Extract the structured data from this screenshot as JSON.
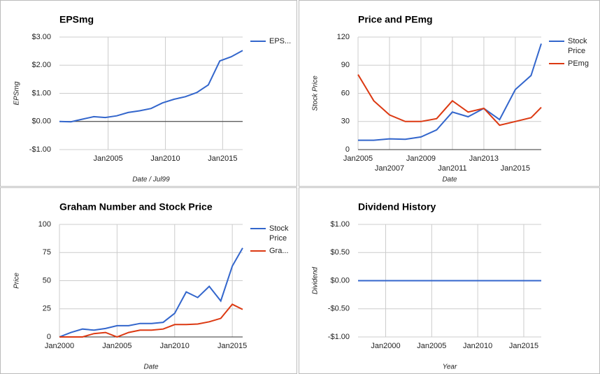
{
  "chart_data": [
    {
      "type": "line",
      "title": "EPSmg",
      "y_label": "EPSmg",
      "x_label": "Date / Jul99",
      "x": [
        2000.75,
        2001.75,
        2002.75,
        2003.75,
        2004.75,
        2005.75,
        2006.75,
        2007.75,
        2008.75,
        2009.75,
        2010.75,
        2011.75,
        2012.75,
        2013.75,
        2014.75,
        2015.75,
        2016.75
      ],
      "series": [
        {
          "name": "EPS...",
          "color": "#3366cc",
          "values": [
            0,
            -0.01,
            0.08,
            0.17,
            0.14,
            0.2,
            0.32,
            0.38,
            0.46,
            0.66,
            0.79,
            0.88,
            1.03,
            1.3,
            2.15,
            2.3,
            2.52
          ]
        }
      ],
      "xlim": [
        2000.75,
        2016.75
      ],
      "xticks": [
        {
          "value": 2005,
          "label": "Jan2005"
        },
        {
          "value": 2010,
          "label": "Jan2010"
        },
        {
          "value": 2015,
          "label": "Jan2015"
        }
      ],
      "ylim": [
        -1,
        3
      ],
      "yticks": [
        {
          "value": -1,
          "label": "-$1.00"
        },
        {
          "value": 0,
          "label": "$0.00"
        },
        {
          "value": 1,
          "label": "$1.00"
        },
        {
          "value": 2,
          "label": "$2.00"
        },
        {
          "value": 3,
          "label": "$3.00"
        }
      ],
      "grid": true,
      "zero_line": true
    },
    {
      "type": "line",
      "title": "Price and PEmg",
      "y_label": "Stock Price",
      "x_label": "Date",
      "x": [
        2005,
        2006,
        2007,
        2008,
        2009,
        2010,
        2011,
        2012,
        2013,
        2014,
        2015,
        2016,
        2016.65
      ],
      "series": [
        {
          "name": "Stock Price",
          "color": "#3366cc",
          "values": [
            10,
            10,
            11.5,
            11,
            13.5,
            21,
            40,
            35,
            44,
            32,
            64,
            79,
            113
          ]
        },
        {
          "name": "PEmg",
          "color": "#dc3912",
          "values": [
            80,
            52,
            37,
            30,
            30,
            33,
            52,
            40,
            44,
            26,
            30,
            34,
            45
          ]
        }
      ],
      "xlim": [
        2005,
        2016.65
      ],
      "xticks": [
        {
          "value": 2005,
          "label": "Jan2005"
        },
        {
          "value": 2007,
          "label": "Jan2007"
        },
        {
          "value": 2009,
          "label": "Jan2009"
        },
        {
          "value": 2011,
          "label": "Jan2011"
        },
        {
          "value": 2013,
          "label": "Jan2013"
        },
        {
          "value": 2015,
          "label": "Jan2015"
        }
      ],
      "ylim": [
        0,
        120
      ],
      "yticks": [
        0,
        30,
        60,
        90,
        120
      ],
      "grid": true,
      "zero_line": true
    },
    {
      "type": "line",
      "title": "Graham Number and Stock Price",
      "y_label": "Price",
      "x_label": "Date",
      "x": [
        2000,
        2001,
        2002,
        2003,
        2004,
        2005,
        2006,
        2007,
        2008,
        2009,
        2010,
        2011,
        2012,
        2013,
        2014,
        2015,
        2015.9
      ],
      "series": [
        {
          "name": "Stock Price",
          "color": "#3366cc",
          "values": [
            0,
            4,
            7,
            6,
            7.5,
            10,
            10,
            12,
            12,
            13,
            21,
            40,
            35,
            45,
            32,
            63,
            79
          ]
        },
        {
          "name": "Gra...",
          "color": "#dc3912",
          "values": [
            0,
            0,
            0,
            3,
            4,
            0,
            4,
            6,
            6,
            7,
            11,
            11,
            11.5,
            13.5,
            16.5,
            29,
            24.5
          ]
        }
      ],
      "xlim": [
        2000,
        2015.9
      ],
      "xticks": [
        {
          "value": 2000,
          "label": "Jan2000"
        },
        {
          "value": 2005,
          "label": "Jan2005"
        },
        {
          "value": 2010,
          "label": "Jan2010"
        },
        {
          "value": 2015,
          "label": "Jan2015"
        }
      ],
      "ylim": [
        0,
        100
      ],
      "yticks": [
        0,
        25,
        50,
        75,
        100
      ],
      "grid": true,
      "zero_line": true
    },
    {
      "type": "line",
      "title": "Dividend History",
      "y_label": "Dividend",
      "x_label": "Year",
      "x": [
        1997,
        2016.9
      ],
      "series": [
        {
          "color": "#3366cc",
          "values": [
            0,
            0
          ]
        }
      ],
      "xlim": [
        1997,
        2016.9
      ],
      "xticks": [
        {
          "value": 2000,
          "label": "Jan2000"
        },
        {
          "value": 2005,
          "label": "Jan2005"
        },
        {
          "value": 2010,
          "label": "Jan2010"
        },
        {
          "value": 2015,
          "label": "Jan2015"
        }
      ],
      "ylim": [
        -1,
        1
      ],
      "yticks": [
        {
          "value": -1,
          "label": "-$1.00"
        },
        {
          "value": -0.5,
          "label": "-$0.50"
        },
        {
          "value": 0,
          "label": "$0.00"
        },
        {
          "value": 0.5,
          "label": "$0.50"
        },
        {
          "value": 1,
          "label": "$1.00"
        }
      ],
      "grid": true
    }
  ]
}
